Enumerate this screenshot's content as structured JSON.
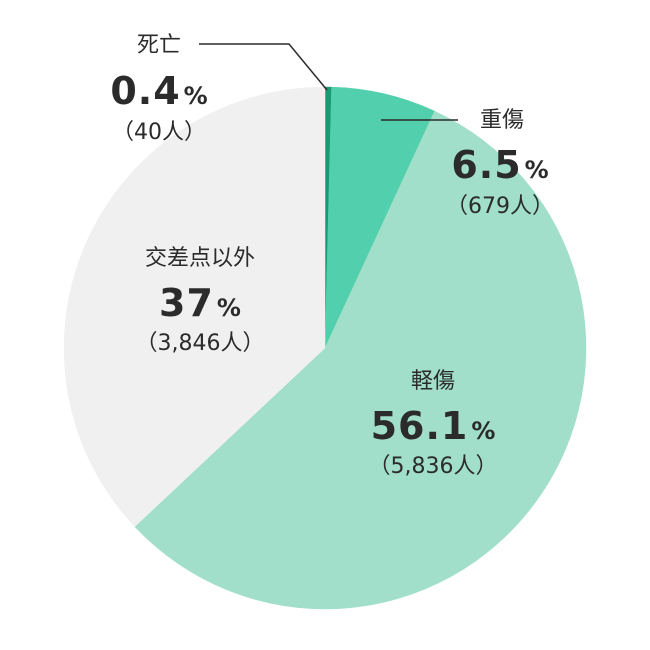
{
  "chart_data": {
    "type": "pie",
    "start": "top",
    "direction": "clockwise",
    "slices": [
      {
        "label": "死亡",
        "percent": 0.4,
        "percent_text": "0.4",
        "unit": "%",
        "count_text": "（40人）",
        "color": "#1a9a72"
      },
      {
        "label": "重傷",
        "percent": 6.5,
        "percent_text": "6.5",
        "unit": "%",
        "count_text": "（679人）",
        "color": "#52cfac"
      },
      {
        "label": "軽傷",
        "percent": 56.1,
        "percent_text": "56.1",
        "unit": "%",
        "count_text": "（5,836人）",
        "color": "#a1dfca"
      },
      {
        "label": "交差点以外",
        "percent": 37,
        "percent_text": "37",
        "unit": "%",
        "count_text": "（3,846人）",
        "color": "#f0f0f0"
      }
    ]
  }
}
